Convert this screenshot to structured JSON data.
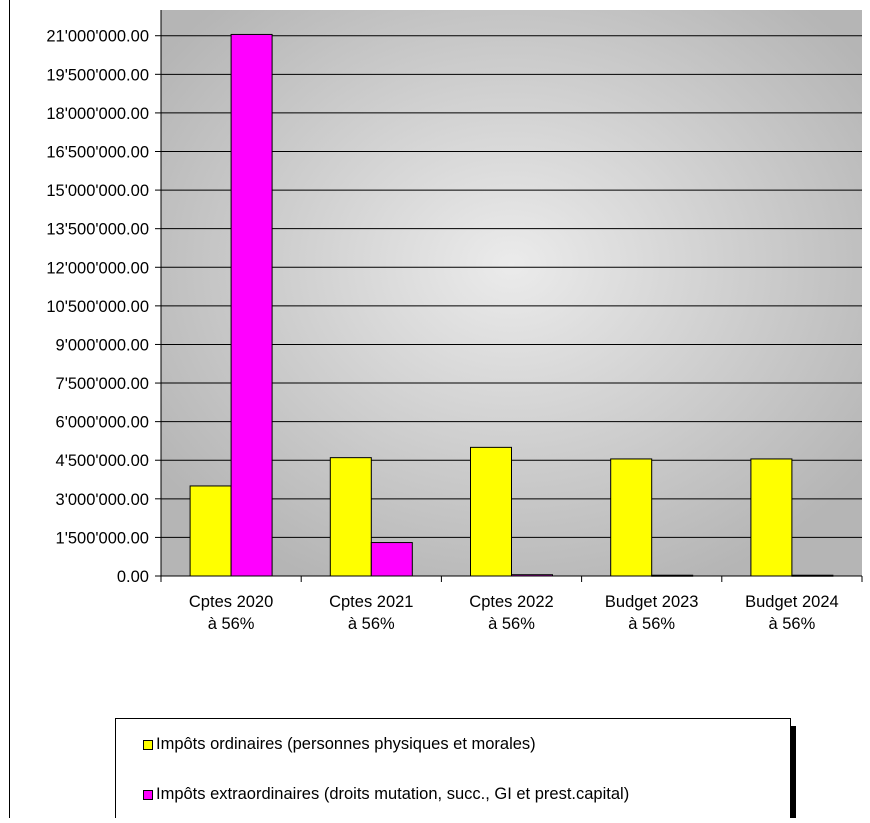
{
  "chart_data": {
    "type": "bar",
    "categories": [
      [
        "Cptes 2020",
        "à 56%"
      ],
      [
        "Cptes 2021",
        "à 56%"
      ],
      [
        "Cptes 2022",
        "à 56%"
      ],
      [
        "Budget 2023",
        "à 56%"
      ],
      [
        "Budget 2024",
        "à 56%"
      ]
    ],
    "series": [
      {
        "name": "Impôts ordinaires (personnes physiques et morales)",
        "color": "#ffff00",
        "values": [
          3500000,
          4600000,
          5000000,
          4550000,
          4550000
        ]
      },
      {
        "name": "Impôts extraordinaires (droits mutation, succ., GI et prest.capital)",
        "color": "#ff00ff",
        "values": [
          21050000,
          1300000,
          50000,
          30000,
          30000
        ]
      }
    ],
    "yticks": [
      "0.00",
      "1'500'000.00",
      "3'000'000.00",
      "4'500'000.00",
      "6'000'000.00",
      "7'500'000.00",
      "9'000'000.00",
      "10'500'000.00",
      "12'000'000.00",
      "13'500'000.00",
      "15'000'000.00",
      "16'500'000.00",
      "18'000'000.00",
      "19'500'000.00",
      "21'000'000.00"
    ],
    "ylim": [
      0,
      22000000
    ],
    "tick_step": 1500000,
    "grid": true,
    "legend_position": "bottom"
  }
}
